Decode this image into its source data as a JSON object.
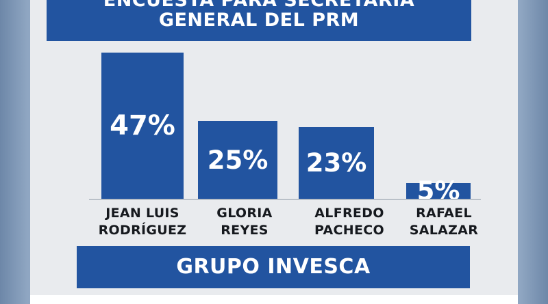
{
  "chart_data": {
    "type": "bar",
    "title_lines": [
      "ENCUESTA PARA SECRETARÍA",
      "GENERAL DEL PRM"
    ],
    "categories": [
      [
        "JEAN LUIS",
        "RODRÍGUEZ"
      ],
      [
        "GLORIA",
        "REYES"
      ],
      [
        "ALFREDO",
        "PACHECO"
      ],
      [
        "RAFAEL",
        "SALAZAR"
      ]
    ],
    "values": [
      47,
      25,
      23,
      5
    ],
    "value_labels": [
      "47%",
      "25%",
      "23%",
      "5%"
    ],
    "unit": "%",
    "source": "GRUPO INVESCA",
    "bar_color": "#2254a0",
    "background_color": "#e9ebee"
  }
}
